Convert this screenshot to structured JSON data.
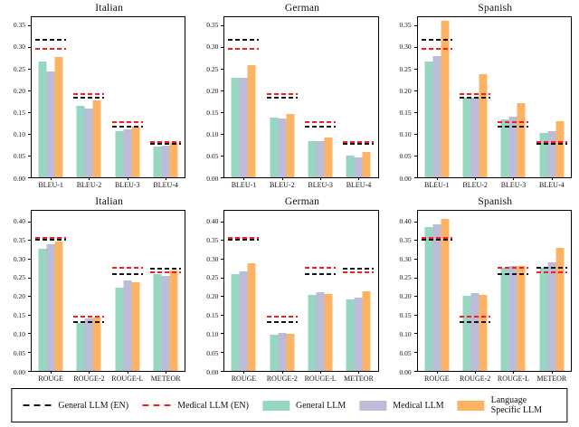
{
  "colors": {
    "general_llm_en": "#141414",
    "medical_llm_en": "#f81e1e",
    "general_llm": "#96d6c3",
    "medical_llm": "#bcbcd8",
    "language_specific_llm": "#fcb464"
  },
  "legend": {
    "items": [
      {
        "label": "General LLM (EN)",
        "type": "dashed-line",
        "color_key": "general_llm_en"
      },
      {
        "label": "Medical LLM (EN)",
        "type": "dashed-line",
        "color_key": "medical_llm_en"
      },
      {
        "label": "General LLM",
        "type": "patch",
        "color_key": "general_llm"
      },
      {
        "label": "Medical LLM",
        "type": "patch",
        "color_key": "medical_llm"
      },
      {
        "label": "Language Specific LLM",
        "type": "patch",
        "color_key": "language_specific_llm"
      }
    ]
  },
  "chart_data": [
    {
      "type": "bar",
      "title": "Italian",
      "categories": [
        "BLEU-1",
        "BLEU-2",
        "BLEU-3",
        "BLEU-4"
      ],
      "ylim": [
        0,
        0.37
      ],
      "yticks": [
        0.0,
        0.05,
        0.1,
        0.15,
        0.2,
        0.25,
        0.3,
        0.35
      ],
      "series": [
        {
          "name": "General LLM",
          "color_key": "general_llm",
          "values": [
            0.268,
            0.166,
            0.107,
            0.071
          ]
        },
        {
          "name": "Medical LLM",
          "color_key": "medical_llm",
          "values": [
            0.245,
            0.159,
            0.111,
            0.074
          ]
        },
        {
          "name": "Language Specific LLM",
          "color_key": "language_specific_llm",
          "values": [
            0.279,
            0.177,
            0.118,
            0.079
          ]
        }
      ],
      "reference_lines": [
        {
          "name": "General LLM (EN)",
          "color_key": "general_llm_en",
          "values": [
            0.318,
            0.184,
            0.117,
            0.077
          ]
        },
        {
          "name": "Medical LLM (EN)",
          "color_key": "medical_llm_en",
          "values": [
            0.296,
            0.192,
            0.127,
            0.081
          ]
        }
      ]
    },
    {
      "type": "bar",
      "title": "German",
      "categories": [
        "BLEU-1",
        "BLEU-2",
        "BLEU-3",
        "BLEU-4"
      ],
      "ylim": [
        0,
        0.37
      ],
      "yticks": [
        0.0,
        0.05,
        0.1,
        0.15,
        0.2,
        0.25,
        0.3,
        0.35
      ],
      "series": [
        {
          "name": "General LLM",
          "color_key": "general_llm",
          "values": [
            0.229,
            0.137,
            0.083,
            0.05
          ]
        },
        {
          "name": "Medical LLM",
          "color_key": "medical_llm",
          "values": [
            0.231,
            0.135,
            0.083,
            0.047
          ]
        },
        {
          "name": "Language Specific LLM",
          "color_key": "language_specific_llm",
          "values": [
            0.259,
            0.146,
            0.093,
            0.058
          ]
        }
      ],
      "reference_lines": [
        {
          "name": "General LLM (EN)",
          "color_key": "general_llm_en",
          "values": [
            0.318,
            0.183,
            0.117,
            0.077
          ]
        },
        {
          "name": "Medical LLM (EN)",
          "color_key": "medical_llm_en",
          "values": [
            0.296,
            0.192,
            0.127,
            0.081
          ]
        }
      ]
    },
    {
      "type": "bar",
      "title": "Spanish",
      "categories": [
        "BLEU-1",
        "BLEU-2",
        "BLEU-3",
        "BLEU-4"
      ],
      "ylim": [
        0,
        0.37
      ],
      "yticks": [
        0.0,
        0.05,
        0.1,
        0.15,
        0.2,
        0.25,
        0.3,
        0.35
      ],
      "series": [
        {
          "name": "General LLM",
          "color_key": "general_llm",
          "values": [
            0.267,
            0.184,
            0.134,
            0.102
          ]
        },
        {
          "name": "Medical LLM",
          "color_key": "medical_llm",
          "values": [
            0.28,
            0.185,
            0.14,
            0.107
          ]
        },
        {
          "name": "Language Specific LLM",
          "color_key": "language_specific_llm",
          "values": [
            0.361,
            0.239,
            0.172,
            0.13
          ]
        }
      ],
      "reference_lines": [
        {
          "name": "General LLM (EN)",
          "color_key": "general_llm_en",
          "values": [
            0.318,
            0.184,
            0.117,
            0.077
          ]
        },
        {
          "name": "Medical LLM (EN)",
          "color_key": "medical_llm_en",
          "values": [
            0.296,
            0.192,
            0.127,
            0.081
          ]
        }
      ]
    },
    {
      "type": "bar",
      "title": "Italian",
      "categories": [
        "ROUGE",
        "ROUGE-2",
        "ROUGE-L",
        "METEOR"
      ],
      "ylim": [
        0,
        0.43
      ],
      "yticks": [
        0.0,
        0.05,
        0.1,
        0.15,
        0.2,
        0.25,
        0.3,
        0.35,
        0.4
      ],
      "series": [
        {
          "name": "General LLM",
          "color_key": "general_llm",
          "values": [
            0.327,
            0.13,
            0.224,
            0.259
          ]
        },
        {
          "name": "Medical LLM",
          "color_key": "medical_llm",
          "values": [
            0.341,
            0.14,
            0.244,
            0.254
          ]
        },
        {
          "name": "Language Specific LLM",
          "color_key": "language_specific_llm",
          "values": [
            0.348,
            0.143,
            0.237,
            0.269
          ]
        }
      ],
      "reference_lines": [
        {
          "name": "General LLM (EN)",
          "color_key": "general_llm_en",
          "values": [
            0.353,
            0.132,
            0.259,
            0.275
          ]
        },
        {
          "name": "Medical LLM (EN)",
          "color_key": "medical_llm_en",
          "values": [
            0.358,
            0.146,
            0.276,
            0.264
          ]
        }
      ]
    },
    {
      "type": "bar",
      "title": "German",
      "categories": [
        "ROUGE",
        "ROUGE-2",
        "ROUGE-L",
        "METEOR"
      ],
      "ylim": [
        0,
        0.43
      ],
      "yticks": [
        0.0,
        0.05,
        0.1,
        0.15,
        0.2,
        0.25,
        0.3,
        0.35,
        0.4
      ],
      "series": [
        {
          "name": "General LLM",
          "color_key": "general_llm",
          "values": [
            0.26,
            0.098,
            0.204,
            0.191
          ]
        },
        {
          "name": "Medical LLM",
          "color_key": "medical_llm",
          "values": [
            0.268,
            0.101,
            0.211,
            0.196
          ]
        },
        {
          "name": "Language Specific LLM",
          "color_key": "language_specific_llm",
          "values": [
            0.288,
            0.099,
            0.206,
            0.215
          ]
        }
      ],
      "reference_lines": [
        {
          "name": "General LLM (EN)",
          "color_key": "general_llm_en",
          "values": [
            0.352,
            0.132,
            0.259,
            0.275
          ]
        },
        {
          "name": "Medical LLM (EN)",
          "color_key": "medical_llm_en",
          "values": [
            0.357,
            0.146,
            0.276,
            0.264
          ]
        }
      ]
    },
    {
      "type": "bar",
      "title": "Spanish",
      "categories": [
        "ROUGE",
        "ROUGE-2",
        "ROUGE-L",
        "METEOR"
      ],
      "ylim": [
        0,
        0.43
      ],
      "yticks": [
        0.0,
        0.05,
        0.1,
        0.15,
        0.2,
        0.25,
        0.3,
        0.35,
        0.4
      ],
      "series": [
        {
          "name": "General LLM",
          "color_key": "general_llm",
          "values": [
            0.386,
            0.202,
            0.277,
            0.277
          ]
        },
        {
          "name": "Medical LLM",
          "color_key": "medical_llm",
          "values": [
            0.394,
            0.208,
            0.281,
            0.291
          ]
        },
        {
          "name": "Language Specific LLM",
          "color_key": "language_specific_llm",
          "values": [
            0.407,
            0.204,
            0.282,
            0.331
          ]
        }
      ],
      "reference_lines": [
        {
          "name": "General LLM (EN)",
          "color_key": "general_llm_en",
          "values": [
            0.353,
            0.132,
            0.26,
            0.276
          ]
        },
        {
          "name": "Medical LLM (EN)",
          "color_key": "medical_llm_en",
          "values": [
            0.357,
            0.146,
            0.276,
            0.264
          ]
        }
      ]
    }
  ]
}
